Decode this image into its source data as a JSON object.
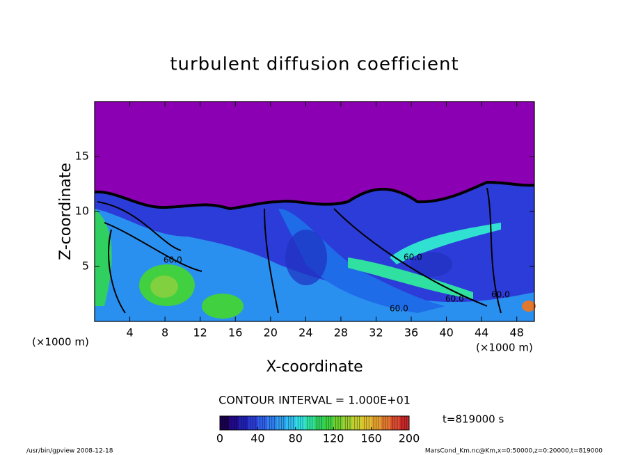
{
  "chart_data": {
    "type": "contour",
    "title": "turbulent diffusion coefficient",
    "x_label": "X-coordinate",
    "y_label": "Z-coordinate",
    "x_unit": "(×1000 m)",
    "xlim": [
      0,
      50
    ],
    "xticks": [
      4,
      8,
      12,
      16,
      20,
      24,
      28,
      32,
      36,
      40,
      44,
      48
    ],
    "ylim": [
      0,
      20
    ],
    "yticks": [
      5,
      10,
      15
    ],
    "contour_labels": [
      "60.0",
      "60.0",
      "60.0",
      "60.0",
      "60.0"
    ],
    "contour_interval": "CONTOUR INTERVAL = 1.000E+01",
    "colorbar": {
      "lim": [
        0,
        200
      ],
      "ticks": [
        0,
        40,
        80,
        120,
        160,
        200
      ],
      "colors": [
        "#1a0050",
        "#220a8a",
        "#2020b0",
        "#2a3cd0",
        "#3060e8",
        "#3080f0",
        "#30a0f0",
        "#30c0f0",
        "#30e0e0",
        "#30e0a0",
        "#30d060",
        "#40d040",
        "#70d030",
        "#a0d030",
        "#c8d030",
        "#e0c030",
        "#e0a030",
        "#e07830",
        "#d84c30",
        "#c82828"
      ]
    },
    "time": "t=819000 s",
    "footer_left": "/usr/bin/gpview   2008-12-18",
    "footer_right": "MarsCond_Km.nc@Km,x=0:50000,z=0:20000,t=819000"
  }
}
